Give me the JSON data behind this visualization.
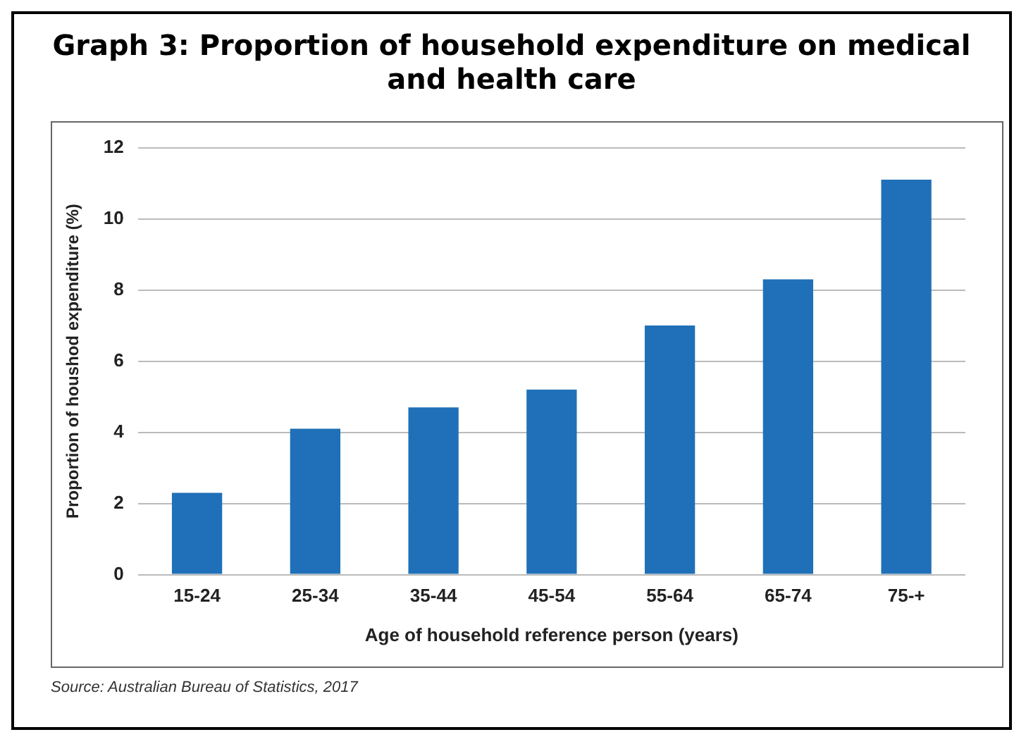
{
  "chart_data": {
    "type": "bar",
    "title": "Graph 3: Proportion of household expenditure on medical and health care",
    "xlabel": "Age of household reference person (years)",
    "ylabel": "Proportion of houshod expenditure (%)",
    "categories": [
      "15-24",
      "25-34",
      "35-44",
      "45-54",
      "55-64",
      "65-74",
      "75-+"
    ],
    "values": [
      2.3,
      4.1,
      4.7,
      5.2,
      7.0,
      8.3,
      11.1
    ],
    "color": "#1f70b8",
    "ylim": [
      0,
      12
    ],
    "yticks": [
      0,
      2,
      4,
      6,
      8,
      10,
      12
    ],
    "grid": "y",
    "legend": false,
    "annotations": [
      "Source: Australian Bureau of Statistics, 2017"
    ]
  }
}
